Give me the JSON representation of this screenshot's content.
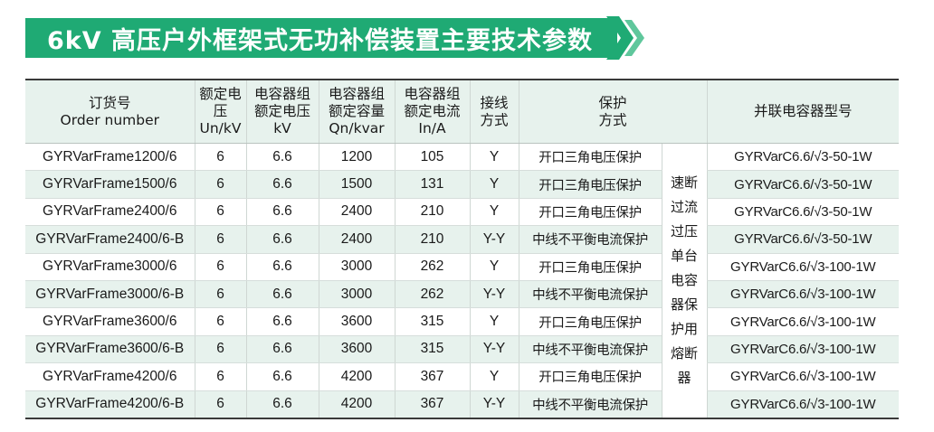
{
  "banner": {
    "title": "6kV 高压户外框架式无功补偿装置主要技术参数"
  },
  "colors": {
    "accent": "#1faa74",
    "header_bg": "#e7f2ed",
    "row_alt_bg": "#e7f2ed"
  },
  "table": {
    "headers": {
      "order": [
        "订货号",
        "Order number"
      ],
      "rated_voltage": [
        "额定电",
        "压",
        "Un/kV"
      ],
      "cap_voltage": [
        "电容器组",
        "额定电压",
        "kV"
      ],
      "cap_capacity": [
        "电容器组",
        "额定容量",
        "Qn/kvar"
      ],
      "cap_current": [
        "电容器组",
        "额定电流",
        "In/A"
      ],
      "wiring": [
        "接线",
        "方式"
      ],
      "protection": [
        "保护",
        "方式"
      ],
      "model": [
        "并联电容器型号"
      ]
    },
    "protection_shared": "速断过流过压单台电容器保护用熔断器",
    "rows": [
      {
        "order": "GYRVarFrame1200/6",
        "un": "6",
        "kv": "6.6",
        "qn": "1200",
        "in": "105",
        "wiring": "Y",
        "protection": "开口三角电压保护",
        "model": "GYRVarC6.6/√3-50-1W"
      },
      {
        "order": "GYRVarFrame1500/6",
        "un": "6",
        "kv": "6.6",
        "qn": "1500",
        "in": "131",
        "wiring": "Y",
        "protection": "开口三角电压保护",
        "model": "GYRVarC6.6/√3-50-1W"
      },
      {
        "order": "GYRVarFrame2400/6",
        "un": "6",
        "kv": "6.6",
        "qn": "2400",
        "in": "210",
        "wiring": "Y",
        "protection": "开口三角电压保护",
        "model": "GYRVarC6.6/√3-50-1W"
      },
      {
        "order": "GYRVarFrame2400/6-B",
        "un": "6",
        "kv": "6.6",
        "qn": "2400",
        "in": "210",
        "wiring": "Y-Y",
        "protection": "中线不平衡电流保护",
        "model": "GYRVarC6.6/√3-50-1W"
      },
      {
        "order": "GYRVarFrame3000/6",
        "un": "6",
        "kv": "6.6",
        "qn": "3000",
        "in": "262",
        "wiring": "Y",
        "protection": "开口三角电压保护",
        "model": "GYRVarC6.6/√3-100-1W"
      },
      {
        "order": "GYRVarFrame3000/6-B",
        "un": "6",
        "kv": "6.6",
        "qn": "3000",
        "in": "262",
        "wiring": "Y-Y",
        "protection": "中线不平衡电流保护",
        "model": "GYRVarC6.6/√3-100-1W"
      },
      {
        "order": "GYRVarFrame3600/6",
        "un": "6",
        "kv": "6.6",
        "qn": "3600",
        "in": "315",
        "wiring": "Y",
        "protection": "开口三角电压保护",
        "model": "GYRVarC6.6/√3-100-1W"
      },
      {
        "order": "GYRVarFrame3600/6-B",
        "un": "6",
        "kv": "6.6",
        "qn": "3600",
        "in": "315",
        "wiring": "Y-Y",
        "protection": "中线不平衡电流保护",
        "model": "GYRVarC6.6/√3-100-1W"
      },
      {
        "order": "GYRVarFrame4200/6",
        "un": "6",
        "kv": "6.6",
        "qn": "4200",
        "in": "367",
        "wiring": "Y",
        "protection": "开口三角电压保护",
        "model": "GYRVarC6.6/√3-100-1W"
      },
      {
        "order": "GYRVarFrame4200/6-B",
        "un": "6",
        "kv": "6.6",
        "qn": "4200",
        "in": "367",
        "wiring": "Y-Y",
        "protection": "中线不平衡电流保护",
        "model": "GYRVarC6.6/√3-100-1W"
      }
    ]
  }
}
